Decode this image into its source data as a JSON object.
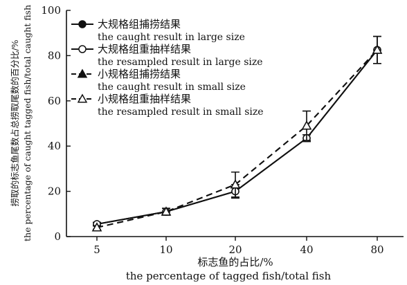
{
  "chart_data": {
    "type": "line",
    "categories": [
      "5",
      "10",
      "20",
      "40",
      "80"
    ],
    "xlabel_zh": "标志鱼的占比/%",
    "xlabel_en": "the percentage of tagged fish/total fish",
    "ylabel_zh": "捞取的标志鱼尾数占总捞取尾数的百分比/%",
    "ylabel_en": "the percentage of caught tagged fish/total caught fish",
    "ylim": [
      0,
      100
    ],
    "yticks": [
      "0",
      "20",
      "40",
      "60",
      "80",
      "100"
    ],
    "grid": false,
    "legend_position": "top-left",
    "series": [
      {
        "name_zh": "大规格组捕捞结果",
        "name_en": "the caught result in large size",
        "marker": "filled-circle",
        "line": "solid",
        "values": [
          5.5,
          11,
          20,
          43.5,
          82.5
        ],
        "errors": [
          0.8,
          1.5,
          3,
          1.5,
          6
        ]
      },
      {
        "name_zh": "大规格组重抽样结果",
        "name_en": "the resampled result in large size",
        "marker": "open-circle",
        "line": "solid",
        "values": [
          5.5,
          11,
          20,
          43.5,
          82.5
        ],
        "errors": [
          0.8,
          1.5,
          3,
          1.5,
          6
        ]
      },
      {
        "name_zh": "小规格组捕捞结果",
        "name_en": "the caught result in small size",
        "marker": "filled-triangle",
        "line": "dashed",
        "values": [
          4,
          11,
          23,
          49,
          82.5
        ],
        "errors": [
          0.8,
          1.5,
          5.5,
          6.5,
          6
        ]
      },
      {
        "name_zh": "小规格组重抽样结果",
        "name_en": "the resampled result in small size",
        "marker": "open-triangle",
        "line": "dashed",
        "values": [
          4,
          11,
          23,
          49,
          82.5
        ],
        "errors": [
          0.8,
          1.5,
          5.5,
          6.5,
          6
        ]
      }
    ]
  }
}
